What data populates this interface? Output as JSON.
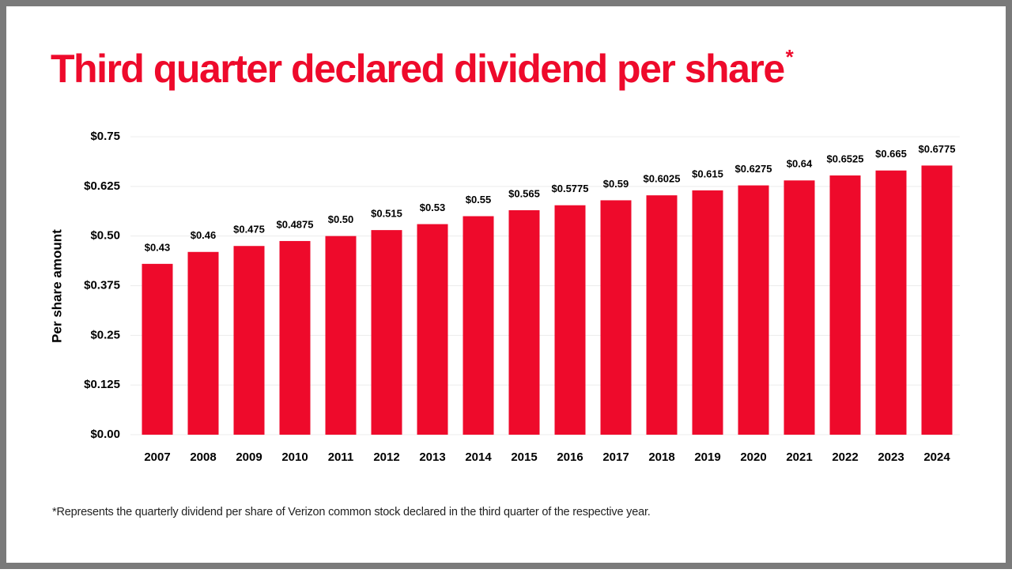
{
  "chart_data": {
    "type": "bar",
    "title": "Third quarter declared dividend per share",
    "title_marker": "*",
    "y_label": "Per share amount",
    "footnote": "*Represents the quarterly dividend per share of Verizon common stock declared in the third quarter of the respective year.",
    "categories": [
      "2007",
      "2008",
      "2009",
      "2010",
      "2011",
      "2012",
      "2013",
      "2014",
      "2015",
      "2016",
      "2017",
      "2018",
      "2019",
      "2020",
      "2021",
      "2022",
      "2023",
      "2024"
    ],
    "values": [
      0.43,
      0.46,
      0.475,
      0.4875,
      0.5,
      0.515,
      0.53,
      0.55,
      0.565,
      0.5775,
      0.59,
      0.6025,
      0.615,
      0.6275,
      0.64,
      0.6525,
      0.665,
      0.6775
    ],
    "value_labels": [
      "$0.43",
      "$0.46",
      "$0.475",
      "$0.4875",
      "$0.50",
      "$0.515",
      "$0.53",
      "$0.55",
      "$0.565",
      "$0.5775",
      "$0.59",
      "$0.6025",
      "$0.615",
      "$0.6275",
      "$0.64",
      "$0.6525",
      "$0.665",
      "$0.6775"
    ],
    "color": "#ee0a2b",
    "ylim": [
      0,
      0.75
    ],
    "yticks": [
      {
        "value": 0,
        "label": "$0.00"
      },
      {
        "value": 0.125,
        "label": "$0.125"
      },
      {
        "value": 0.25,
        "label": "$0.25"
      },
      {
        "value": 0.375,
        "label": "$0.375"
      },
      {
        "value": 0.5,
        "label": "$0.50"
      },
      {
        "value": 0.625,
        "label": "$0.625"
      },
      {
        "value": 0.75,
        "label": "$0.75"
      }
    ],
    "grid": true
  }
}
